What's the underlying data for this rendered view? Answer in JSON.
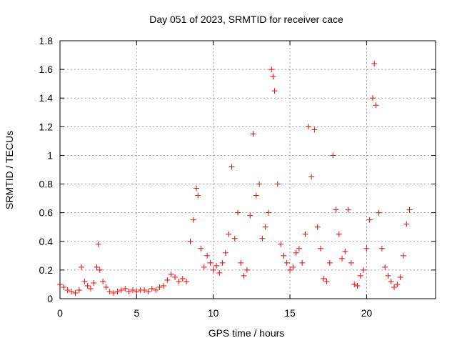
{
  "chart_data": {
    "type": "scatter",
    "title": "Day 051 of 2023, SRMTID for receiver cace",
    "xlabel": "GPS time / hours",
    "ylabel": "SRMTID / TECUs",
    "xlim": [
      0,
      24.5
    ],
    "ylim": [
      0,
      1.8
    ],
    "xticks": [
      0,
      5,
      10,
      15,
      20
    ],
    "xtick_labels": [
      "0",
      "5",
      "10",
      "15",
      "20"
    ],
    "yticks": [
      0,
      0.2,
      0.4,
      0.6,
      0.8,
      1.0,
      1.2,
      1.4,
      1.6,
      1.8
    ],
    "ytick_labels": [
      "0",
      "0.2",
      "0.4",
      "0.6",
      "0.8",
      "1",
      "1.2",
      "1.4",
      "1.6",
      "1.8"
    ],
    "grid": true,
    "marker": "plus",
    "color": "#ff0000",
    "series": [
      {
        "name": "SRMTID",
        "x": [
          0.0,
          0.25,
          0.5,
          0.75,
          1.0,
          1.25,
          1.4,
          1.6,
          1.8,
          2.0,
          2.2,
          2.4,
          2.5,
          2.6,
          2.8,
          3.0,
          3.25,
          3.5,
          3.75,
          4.0,
          4.25,
          4.5,
          4.75,
          5.0,
          5.25,
          5.5,
          5.75,
          6.0,
          6.25,
          6.5,
          6.75,
          7.0,
          7.25,
          7.5,
          7.75,
          8.0,
          8.25,
          8.5,
          8.7,
          8.9,
          9.0,
          9.2,
          9.4,
          9.6,
          9.8,
          10.0,
          10.2,
          10.4,
          10.6,
          10.8,
          11.0,
          11.2,
          11.4,
          11.6,
          11.8,
          12.0,
          12.2,
          12.4,
          12.6,
          12.8,
          13.0,
          13.2,
          13.4,
          13.6,
          13.8,
          13.9,
          14.0,
          14.2,
          14.4,
          14.6,
          14.8,
          15.0,
          15.2,
          15.4,
          15.6,
          15.8,
          16.0,
          16.2,
          16.4,
          16.6,
          16.8,
          17.0,
          17.2,
          17.4,
          17.6,
          17.8,
          18.0,
          18.2,
          18.4,
          18.6,
          18.8,
          19.0,
          19.2,
          19.4,
          19.6,
          19.8,
          20.0,
          20.2,
          20.4,
          20.5,
          20.6,
          20.8,
          21.0,
          21.2,
          21.4,
          21.6,
          21.8,
          22.0,
          22.2,
          22.4,
          22.6,
          22.8
        ],
        "y": [
          0.1,
          0.08,
          0.06,
          0.05,
          0.04,
          0.06,
          0.22,
          0.12,
          0.09,
          0.07,
          0.11,
          0.22,
          0.38,
          0.2,
          0.12,
          0.08,
          0.05,
          0.04,
          0.05,
          0.06,
          0.07,
          0.05,
          0.06,
          0.05,
          0.06,
          0.06,
          0.05,
          0.07,
          0.06,
          0.08,
          0.09,
          0.13,
          0.17,
          0.15,
          0.12,
          0.14,
          0.12,
          0.4,
          0.55,
          0.77,
          0.72,
          0.35,
          0.22,
          0.3,
          0.25,
          0.2,
          0.23,
          0.18,
          0.25,
          0.32,
          0.45,
          0.92,
          0.42,
          0.6,
          0.25,
          0.16,
          0.2,
          0.58,
          1.15,
          0.72,
          0.8,
          0.42,
          0.5,
          0.6,
          1.6,
          1.55,
          1.45,
          0.8,
          0.38,
          0.3,
          0.25,
          0.2,
          0.22,
          0.32,
          0.35,
          0.25,
          0.45,
          1.2,
          0.85,
          1.18,
          0.5,
          0.35,
          0.14,
          0.12,
          0.25,
          1.0,
          0.62,
          0.45,
          0.28,
          0.33,
          0.62,
          0.25,
          0.1,
          0.09,
          0.16,
          0.2,
          0.35,
          0.55,
          1.4,
          1.64,
          1.35,
          0.6,
          0.35,
          0.22,
          0.16,
          0.12,
          0.08,
          0.1,
          0.15,
          0.3,
          0.52,
          0.62
        ]
      }
    ]
  }
}
